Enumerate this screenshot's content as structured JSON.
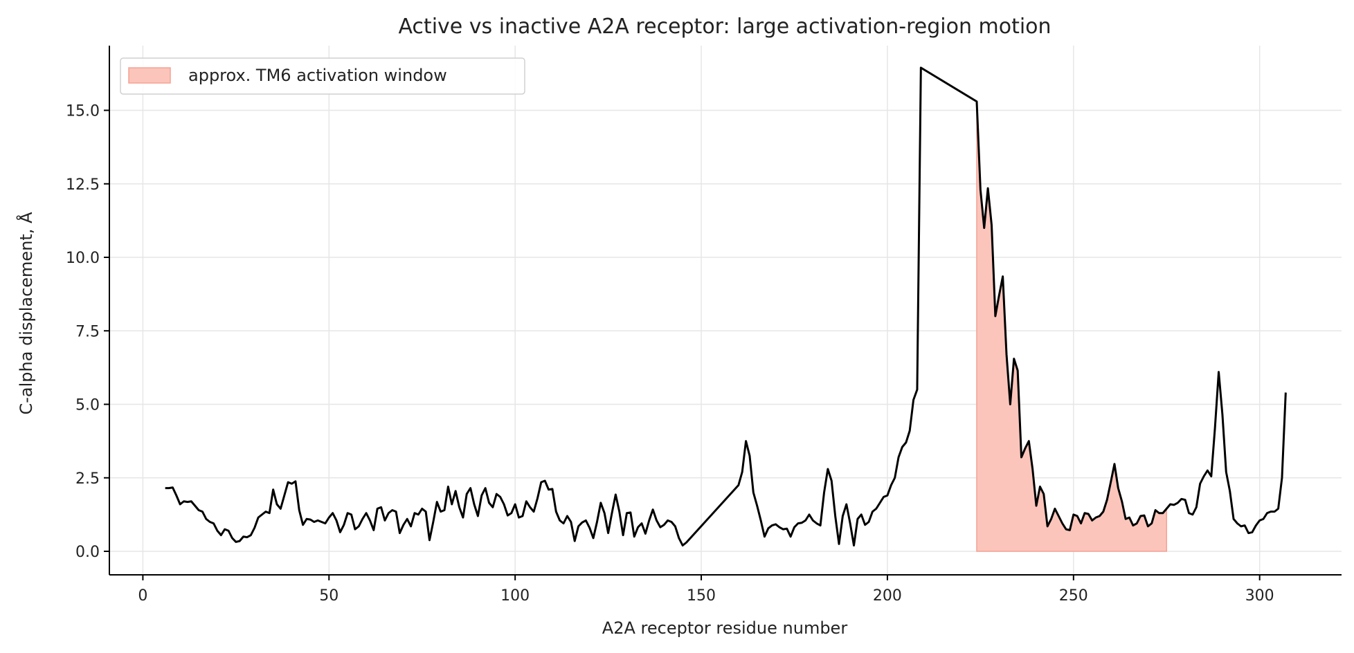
{
  "chart_data": {
    "type": "line",
    "title": "Active vs inactive A2A receptor: large activation-region motion",
    "xlabel": "A2A receptor residue number",
    "ylabel": "C-alpha displacement, Å",
    "xlim": [
      -9,
      322
    ],
    "ylim": [
      -0.8,
      17.2
    ],
    "xticks": [
      0,
      50,
      100,
      150,
      200,
      250,
      300
    ],
    "yticks": [
      0.0,
      2.5,
      5.0,
      7.5,
      10.0,
      12.5,
      15.0
    ],
    "xtick_labels": [
      "0",
      "50",
      "100",
      "150",
      "200",
      "250",
      "300"
    ],
    "ytick_labels": [
      "0.0",
      "2.5",
      "5.0",
      "7.5",
      "10.0",
      "12.5",
      "15.0"
    ],
    "grid": true,
    "legend": {
      "position": "top-left",
      "entries": [
        "approx. TM6 activation window"
      ]
    },
    "colors": {
      "line": "#000000",
      "window_fill": "#fcc5bb",
      "window_edge": "#f4a294"
    },
    "window": {
      "label": "approx. TM6 activation window",
      "x_start": 224,
      "x_end": 275
    },
    "series": [
      {
        "x": [
          6,
          7,
          8,
          9,
          10,
          11,
          12,
          13,
          14,
          15,
          16,
          17,
          18,
          19,
          20,
          21,
          22,
          23,
          24,
          25,
          26,
          27,
          28,
          29,
          30,
          31,
          32,
          33,
          34,
          35,
          36,
          37,
          38,
          39,
          40,
          41,
          42,
          43,
          44,
          45,
          46,
          47,
          48,
          49,
          50,
          51,
          52,
          53,
          54,
          55,
          56,
          57,
          58,
          59,
          60,
          61,
          62,
          63,
          64,
          65,
          66,
          67,
          68,
          69,
          70,
          71,
          72,
          73,
          74,
          75,
          76,
          77,
          78,
          79,
          80,
          81,
          82,
          83,
          84,
          85,
          86,
          87,
          88,
          89,
          90,
          91,
          92,
          93,
          94,
          95,
          96,
          97,
          98,
          99,
          100,
          101,
          102,
          103,
          104,
          105,
          106,
          107,
          108,
          109,
          110,
          111,
          112,
          113,
          114,
          115,
          116,
          117,
          118,
          119,
          120,
          121,
          122,
          123,
          124,
          125,
          126,
          127,
          128,
          129,
          130,
          131,
          132,
          133,
          134,
          135,
          136,
          137,
          138,
          139,
          140,
          141,
          142,
          143,
          144,
          145,
          146,
          160,
          161,
          162,
          163,
          164,
          165,
          166,
          167,
          168,
          169,
          170,
          171,
          172,
          173,
          174,
          175,
          176,
          177,
          178,
          179,
          180,
          181,
          182,
          183,
          184,
          185,
          186,
          187,
          188,
          189,
          190,
          191,
          192,
          193,
          194,
          195,
          196,
          197,
          198,
          199,
          200,
          201,
          202,
          203,
          204,
          205,
          206,
          207,
          208,
          209,
          224,
          225,
          226,
          227,
          228,
          229,
          230,
          231,
          232,
          233,
          234,
          235,
          236,
          237,
          238,
          239,
          240,
          241,
          242,
          243,
          244,
          245,
          246,
          247,
          248,
          249,
          250,
          251,
          252,
          253,
          254,
          255,
          256,
          257,
          258,
          259,
          260,
          261,
          262,
          263,
          264,
          265,
          266,
          267,
          268,
          269,
          270,
          271,
          272,
          273,
          274,
          275,
          276,
          277,
          278,
          279,
          280,
          281,
          282,
          283,
          284,
          285,
          286,
          287,
          288,
          289,
          290,
          291,
          292,
          293,
          294,
          295,
          296,
          297,
          298,
          299,
          300,
          301,
          302,
          303,
          304,
          305,
          306,
          307
        ],
        "y": [
          2.15,
          2.15,
          2.17,
          1.9,
          1.6,
          1.7,
          1.68,
          1.7,
          1.55,
          1.4,
          1.35,
          1.1,
          1.0,
          0.95,
          0.7,
          0.55,
          0.75,
          0.7,
          0.45,
          0.32,
          0.35,
          0.5,
          0.48,
          0.55,
          0.8,
          1.15,
          1.25,
          1.35,
          1.3,
          2.1,
          1.6,
          1.45,
          1.9,
          2.35,
          2.3,
          2.38,
          1.4,
          0.9,
          1.1,
          1.08,
          1.0,
          1.05,
          1.0,
          0.95,
          1.15,
          1.3,
          1.05,
          0.65,
          0.9,
          1.3,
          1.25,
          0.75,
          0.85,
          1.1,
          1.3,
          1.05,
          0.72,
          1.45,
          1.5,
          1.05,
          1.3,
          1.4,
          1.35,
          0.62,
          0.9,
          1.1,
          0.85,
          1.3,
          1.25,
          1.45,
          1.35,
          0.38,
          1.0,
          1.68,
          1.35,
          1.4,
          2.2,
          1.6,
          2.05,
          1.5,
          1.15,
          1.95,
          2.15,
          1.6,
          1.2,
          1.9,
          2.15,
          1.65,
          1.5,
          1.95,
          1.85,
          1.6,
          1.22,
          1.3,
          1.6,
          1.15,
          1.2,
          1.7,
          1.5,
          1.35,
          1.8,
          2.35,
          2.4,
          2.1,
          2.12,
          1.35,
          1.05,
          0.95,
          1.2,
          1.0,
          0.35,
          0.85,
          0.98,
          1.05,
          0.8,
          0.45,
          1.0,
          1.65,
          1.3,
          0.62,
          1.3,
          1.93,
          1.35,
          0.55,
          1.3,
          1.32,
          0.5,
          0.82,
          0.95,
          0.6,
          1.05,
          1.42,
          1.05,
          0.82,
          0.9,
          1.05,
          1.0,
          0.85,
          0.45,
          0.2,
          0.3,
          2.25,
          2.7,
          3.75,
          3.25,
          2.0,
          1.55,
          1.05,
          0.5,
          0.78,
          0.88,
          0.92,
          0.82,
          0.75,
          0.77,
          0.5,
          0.82,
          0.95,
          0.97,
          1.05,
          1.25,
          1.05,
          0.95,
          0.88,
          2.0,
          2.8,
          2.4,
          1.2,
          0.25,
          1.2,
          1.6,
          0.95,
          0.2,
          1.1,
          1.25,
          0.9,
          1.0,
          1.35,
          1.45,
          1.65,
          1.85,
          1.9,
          2.25,
          2.5,
          3.2,
          3.55,
          3.7,
          4.1,
          5.15,
          5.5,
          16.45,
          15.3,
          12.3,
          11.0,
          12.35,
          11.1,
          8.0,
          8.7,
          9.35,
          6.7,
          5.0,
          6.55,
          6.15,
          3.2,
          3.5,
          3.75,
          2.8,
          1.55,
          2.2,
          1.95,
          0.85,
          1.1,
          1.45,
          1.2,
          0.95,
          0.75,
          0.72,
          1.25,
          1.2,
          0.95,
          1.3,
          1.27,
          1.05,
          1.15,
          1.2,
          1.35,
          1.75,
          2.35,
          2.97,
          2.15,
          1.7,
          1.1,
          1.15,
          0.88,
          0.95,
          1.2,
          1.22,
          0.85,
          0.95,
          1.4,
          1.3,
          1.3,
          1.45,
          1.6,
          1.58,
          1.65,
          1.78,
          1.75,
          1.3,
          1.25,
          1.5,
          2.3,
          2.55,
          2.75,
          2.55,
          4.2,
          6.1,
          4.65,
          2.7,
          2.05,
          1.1,
          0.95,
          0.85,
          0.88,
          0.62,
          0.65,
          0.88,
          1.05,
          1.1,
          1.3,
          1.35,
          1.35,
          1.45,
          2.5,
          5.4
        ]
      }
    ]
  }
}
